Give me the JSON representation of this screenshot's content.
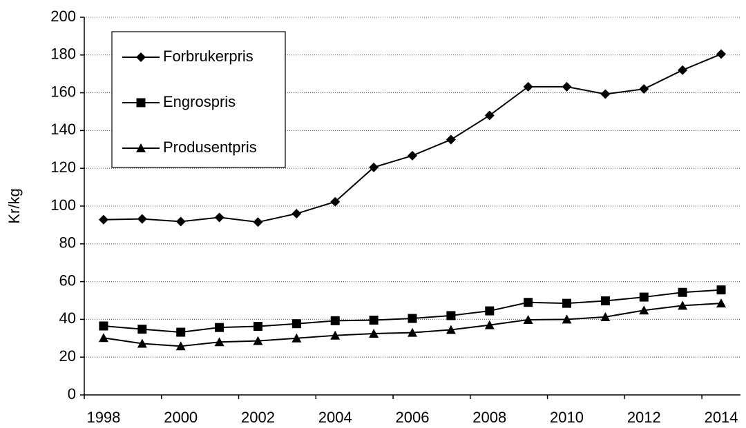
{
  "chart_data": {
    "type": "line",
    "ylabel": "Kr/kg",
    "categories": [
      "1998",
      null,
      "2000",
      null,
      "2002",
      null,
      "2004",
      null,
      "2006",
      null,
      "2008",
      null,
      "2010",
      null,
      "2012",
      null,
      "2014"
    ],
    "series": [
      {
        "name": "Forbrukerpris",
        "color": "#000000",
        "marker": "diamond",
        "values": [
          92.8,
          93.2,
          91.8,
          94.0,
          91.5,
          96.0,
          102.3,
          120.5,
          126.7,
          135.2,
          148.0,
          163.2,
          163.2,
          159.3,
          162.0,
          172.0,
          180.5
        ]
      },
      {
        "name": "Engrospris",
        "color": "#000000",
        "marker": "square",
        "values": [
          36.5,
          34.8,
          33.2,
          35.7,
          36.3,
          37.7,
          39.3,
          39.6,
          40.5,
          42.0,
          44.5,
          49.0,
          48.5,
          49.8,
          51.8,
          54.3,
          55.6
        ]
      },
      {
        "name": "Produsentpris",
        "color": "#000000",
        "marker": "triangle",
        "values": [
          30.2,
          27.2,
          25.8,
          28.0,
          28.6,
          30.0,
          31.5,
          32.5,
          33.0,
          34.5,
          37.0,
          39.8,
          40.0,
          41.3,
          44.8,
          47.3,
          48.5
        ]
      }
    ],
    "ylim": [
      0,
      200
    ],
    "yticks": [
      0,
      20,
      40,
      60,
      80,
      100,
      120,
      140,
      160,
      180,
      200
    ],
    "grid": true,
    "legend": "upper-left"
  }
}
